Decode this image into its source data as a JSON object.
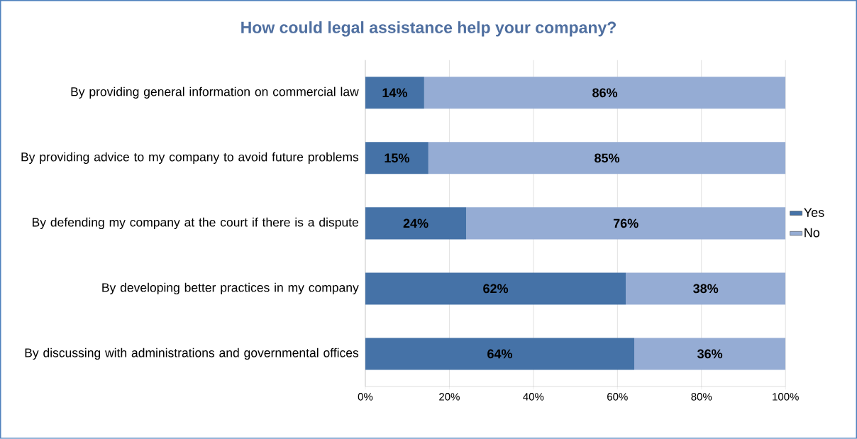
{
  "chart_data": {
    "type": "bar",
    "orientation": "horizontal",
    "stacked": true,
    "title": "How could legal assistance help your company?",
    "categories": [
      "By providing general information on commercial law",
      "By providing advice to my company to avoid future problems",
      "By defending my company at the court if there is a dispute",
      "By developing better practices in my company",
      "By discussing with administrations and governmental offices"
    ],
    "series": [
      {
        "name": "Yes",
        "color": "#4572a7",
        "values": [
          14,
          15,
          24,
          62,
          64
        ],
        "value_labels": [
          "14%",
          "15%",
          "24%",
          "62%",
          "64%"
        ]
      },
      {
        "name": "No",
        "color": "#95acd4",
        "values": [
          86,
          85,
          76,
          38,
          36
        ],
        "value_labels": [
          "86%",
          "85%",
          "76%",
          "38%",
          "36%"
        ]
      }
    ],
    "xlim": [
      0,
      100
    ],
    "xticks": [
      {
        "value": 0,
        "label": "0%"
      },
      {
        "value": 20,
        "label": "20%"
      },
      {
        "value": 40,
        "label": "40%"
      },
      {
        "value": 60,
        "label": "60%"
      },
      {
        "value": 80,
        "label": "80%"
      },
      {
        "value": 100,
        "label": "100%"
      }
    ],
    "grid": "x",
    "legend": "right"
  }
}
